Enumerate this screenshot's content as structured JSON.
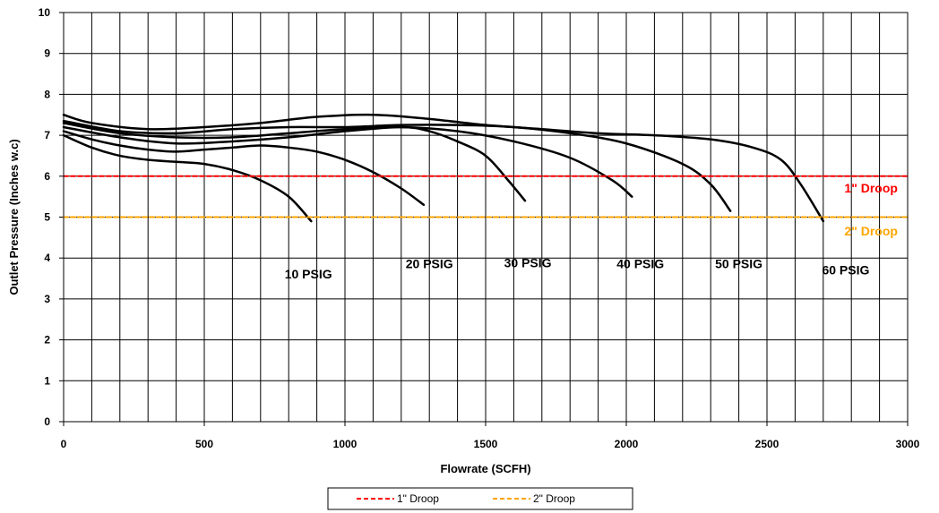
{
  "chart_data": {
    "type": "line",
    "title": "",
    "xlabel": "Flowrate (SCFH)",
    "ylabel": "Outlet Pressure (Inches w.c)",
    "xlim": [
      0,
      3000
    ],
    "ylim": [
      0,
      10
    ],
    "x_ticks": [
      0,
      500,
      1000,
      1500,
      2000,
      2500,
      3000
    ],
    "y_ticks": [
      0,
      1,
      2,
      3,
      4,
      5,
      6,
      7,
      8,
      9,
      10
    ],
    "grid": true,
    "legend_position": "bottom",
    "series": [
      {
        "label": "10 PSIG",
        "color": "#000000",
        "points": [
          [
            0,
            7.0
          ],
          [
            100,
            6.7
          ],
          [
            200,
            6.5
          ],
          [
            300,
            6.4
          ],
          [
            400,
            6.35
          ],
          [
            500,
            6.3
          ],
          [
            600,
            6.15
          ],
          [
            700,
            5.9
          ],
          [
            800,
            5.5
          ],
          [
            880,
            4.9
          ]
        ]
      },
      {
        "label": "20 PSIG",
        "color": "#000000",
        "points": [
          [
            0,
            7.1
          ],
          [
            100,
            6.9
          ],
          [
            200,
            6.75
          ],
          [
            300,
            6.65
          ],
          [
            400,
            6.6
          ],
          [
            500,
            6.65
          ],
          [
            600,
            6.7
          ],
          [
            700,
            6.75
          ],
          [
            800,
            6.7
          ],
          [
            900,
            6.6
          ],
          [
            1000,
            6.4
          ],
          [
            1100,
            6.1
          ],
          [
            1200,
            5.7
          ],
          [
            1280,
            5.3
          ]
        ]
      },
      {
        "label": "30 PSIG",
        "color": "#000000",
        "points": [
          [
            0,
            7.2
          ],
          [
            200,
            6.95
          ],
          [
            400,
            6.8
          ],
          [
            600,
            6.85
          ],
          [
            800,
            6.95
          ],
          [
            1000,
            7.1
          ],
          [
            1200,
            7.2
          ],
          [
            1300,
            7.1
          ],
          [
            1400,
            6.85
          ],
          [
            1500,
            6.5
          ],
          [
            1580,
            5.9
          ],
          [
            1640,
            5.4
          ]
        ]
      },
      {
        "label": "40 PSIG",
        "color": "#000000",
        "points": [
          [
            0,
            7.3
          ],
          [
            200,
            7.05
          ],
          [
            400,
            6.95
          ],
          [
            600,
            6.95
          ],
          [
            800,
            7.05
          ],
          [
            1000,
            7.15
          ],
          [
            1200,
            7.2
          ],
          [
            1400,
            7.1
          ],
          [
            1600,
            6.85
          ],
          [
            1800,
            6.45
          ],
          [
            1950,
            5.9
          ],
          [
            2020,
            5.5
          ]
        ]
      },
      {
        "label": "50 PSIG",
        "color": "#000000",
        "points": [
          [
            0,
            7.35
          ],
          [
            200,
            7.1
          ],
          [
            400,
            7.05
          ],
          [
            600,
            7.15
          ],
          [
            800,
            7.2
          ],
          [
            1000,
            7.2
          ],
          [
            1200,
            7.25
          ],
          [
            1400,
            7.25
          ],
          [
            1600,
            7.2
          ],
          [
            1800,
            7.05
          ],
          [
            2000,
            6.8
          ],
          [
            2200,
            6.3
          ],
          [
            2300,
            5.8
          ],
          [
            2370,
            5.15
          ]
        ]
      },
      {
        "label": "60 PSIG",
        "color": "#000000",
        "points": [
          [
            0,
            7.5
          ],
          [
            100,
            7.3
          ],
          [
            300,
            7.15
          ],
          [
            500,
            7.2
          ],
          [
            700,
            7.3
          ],
          [
            900,
            7.45
          ],
          [
            1100,
            7.5
          ],
          [
            1300,
            7.4
          ],
          [
            1500,
            7.25
          ],
          [
            1700,
            7.15
          ],
          [
            1900,
            7.05
          ],
          [
            2100,
            7.0
          ],
          [
            2300,
            6.9
          ],
          [
            2450,
            6.7
          ],
          [
            2550,
            6.4
          ],
          [
            2620,
            5.8
          ],
          [
            2700,
            4.9
          ]
        ]
      },
      {
        "label": "1\" Droop",
        "color": "#ff0000",
        "style": "dashed",
        "points": [
          [
            0,
            6
          ],
          [
            3000,
            6
          ]
        ]
      },
      {
        "label": "2\" Droop",
        "color": "#ffa500",
        "style": "dashed",
        "points": [
          [
            0,
            5
          ],
          [
            3000,
            5
          ]
        ]
      }
    ],
    "curve_labels": [
      {
        "text": "10 PSIG",
        "x": 870,
        "y": 3.5
      },
      {
        "text": "20 PSIG",
        "x": 1300,
        "y": 3.75
      },
      {
        "text": "30 PSIG",
        "x": 1650,
        "y": 3.78
      },
      {
        "text": "40 PSIG",
        "x": 2050,
        "y": 3.75
      },
      {
        "text": "50 PSIG",
        "x": 2400,
        "y": 3.75
      },
      {
        "text": "60 PSIG",
        "x": 2780,
        "y": 3.6
      }
    ],
    "droop_labels": [
      {
        "text": "1\" Droop",
        "x": 2870,
        "y": 5.6,
        "color": "#ff0000"
      },
      {
        "text": "2\" Droop",
        "x": 2870,
        "y": 4.55,
        "color": "#ffa500"
      }
    ],
    "legend": [
      {
        "label": "1\" Droop",
        "color": "#ff0000"
      },
      {
        "label": "2\" Droop",
        "color": "#ffa500"
      }
    ]
  }
}
